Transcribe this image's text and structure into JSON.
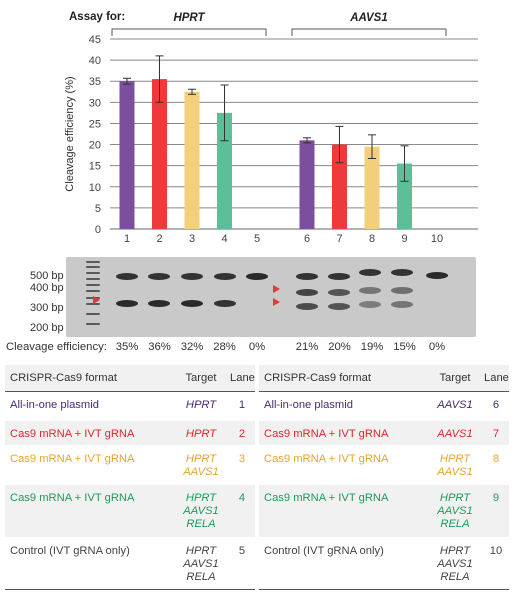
{
  "colors": {
    "purple": "#7b4f9e",
    "red": "#ee3a3a",
    "yellow": "#f2cf7a",
    "green": "#5dbf97",
    "dark": "#222222",
    "text_purple": "#4b2a6e",
    "text_red": "#e0262b",
    "text_yellow": "#e5a42a",
    "text_green": "#1f9a5b",
    "text_gray": "#444444",
    "arrow": "#e03a3a"
  },
  "chart_data": {
    "type": "bar",
    "ylabel": "Cleavage efficiency (%)",
    "ylim": [
      0,
      45
    ],
    "yticks": [
      0,
      5,
      10,
      15,
      20,
      25,
      30,
      35,
      40,
      45
    ],
    "grid": true,
    "categories": [
      "1",
      "2",
      "3",
      "4",
      "5",
      "6",
      "7",
      "8",
      "9",
      "10"
    ],
    "values": [
      35,
      35.5,
      32.5,
      27.5,
      0,
      21,
      20,
      19.5,
      15.5,
      0
    ],
    "errors": [
      0.7,
      5.5,
      0.6,
      6.6,
      0,
      0.6,
      4.3,
      2.8,
      4.2,
      0
    ],
    "bar_colors": [
      "purple",
      "red",
      "yellow",
      "green",
      "none",
      "purple",
      "red",
      "yellow",
      "green",
      "none"
    ],
    "groups": [
      {
        "label": "HPRT",
        "from": 0,
        "to": 4
      },
      {
        "label": "AAVS1",
        "from": 5,
        "to": 9
      }
    ],
    "assay_label": "Assay for:"
  },
  "gel": {
    "bp_labels": [
      "500 bp",
      "400 bp",
      "300 bp",
      "200 bp"
    ]
  },
  "efficiency": {
    "label": "Cleavage efficiency:",
    "values": [
      "35%",
      "36%",
      "32%",
      "28%",
      "0%",
      "21%",
      "20%",
      "19%",
      "15%",
      "0%"
    ]
  },
  "table": {
    "headers": {
      "format": "CRISPR-Cas9 format",
      "target": "Target",
      "lane": "Lane"
    },
    "left": [
      {
        "format": "All-in-one plasmid",
        "targets": [
          "HPRT"
        ],
        "lane": "1",
        "color": "text_purple",
        "shade": false
      },
      {
        "format": "Cas9 mRNA + IVT gRNA",
        "targets": [
          "HPRT"
        ],
        "lane": "2",
        "color": "text_red",
        "shade": true
      },
      {
        "format": "Cas9 mRNA + IVT gRNA",
        "targets": [
          "HPRT",
          "AAVS1"
        ],
        "lane": "3",
        "color": "text_yellow",
        "shade": false
      },
      {
        "format": "Cas9 mRNA + IVT gRNA",
        "targets": [
          "HPRT",
          "AAVS1",
          "RELA"
        ],
        "lane": "4",
        "color": "text_green",
        "shade": true
      },
      {
        "format": "Control (IVT gRNA only)",
        "targets": [
          "HPRT",
          "AAVS1",
          "RELA"
        ],
        "lane": "5",
        "color": "text_gray",
        "shade": false
      }
    ],
    "right": [
      {
        "format": "All-in-one plasmid",
        "targets": [
          "AAVS1"
        ],
        "lane": "6",
        "color": "text_purple",
        "shade": false
      },
      {
        "format": "Cas9 mRNA + IVT gRNA",
        "targets": [
          "AAVS1"
        ],
        "lane": "7",
        "color": "text_red",
        "shade": true
      },
      {
        "format": "Cas9 mRNA + IVT gRNA",
        "targets": [
          "HPRT",
          "AAVS1"
        ],
        "lane": "8",
        "color": "text_yellow",
        "shade": false
      },
      {
        "format": "Cas9 mRNA + IVT gRNA",
        "targets": [
          "HPRT",
          "AAVS1",
          "RELA"
        ],
        "lane": "9",
        "color": "text_green",
        "shade": true
      },
      {
        "format": "Control (IVT gRNA only)",
        "targets": [
          "HPRT",
          "AAVS1",
          "RELA"
        ],
        "lane": "10",
        "color": "text_gray",
        "shade": false
      }
    ]
  }
}
